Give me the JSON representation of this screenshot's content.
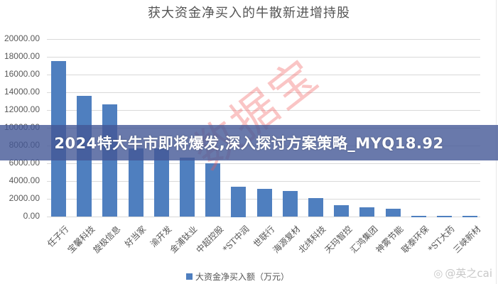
{
  "chart_data": {
    "type": "bar",
    "title": "获大资金净买入的牛散新进增持股",
    "xlabel": "",
    "ylabel": "",
    "ylim": [
      0,
      20000
    ],
    "yticks": [
      "0.00",
      "2000.00",
      "4000.00",
      "6000.00",
      "8000.00",
      "10000.00",
      "12000.00",
      "14000.00",
      "16000.00",
      "18000.00",
      "20000.00"
    ],
    "grid": true,
    "legend_position": "bottom",
    "categories": [
      "任子行",
      "宝馨科技",
      "旋极信息",
      "好当家",
      "渝开发",
      "金浦钛业",
      "中超控股",
      "*ST中润",
      "世联行",
      "海源复材",
      "北纬科技",
      "天玛智控",
      "汇鸿集团",
      "神雾节能",
      "联泰环保",
      "*ST大药",
      "三峡新材"
    ],
    "series": [
      {
        "name": "大资金净买入额（万元）",
        "color": "#4f7fbf",
        "values": [
          17500,
          13600,
          12650,
          7700,
          7700,
          6650,
          6000,
          3400,
          3150,
          2900,
          2100,
          1250,
          1050,
          900,
          120,
          80,
          80
        ]
      }
    ]
  },
  "legend": {
    "label": "大资金净买入额（万元）"
  },
  "overlay_banner": {
    "text": "2024特大牛市即将爆发,深入探讨方案策略_MYQ18.92"
  },
  "watermark": {
    "text": "数据宝"
  },
  "source_badge": {
    "text": "@英之cai"
  }
}
